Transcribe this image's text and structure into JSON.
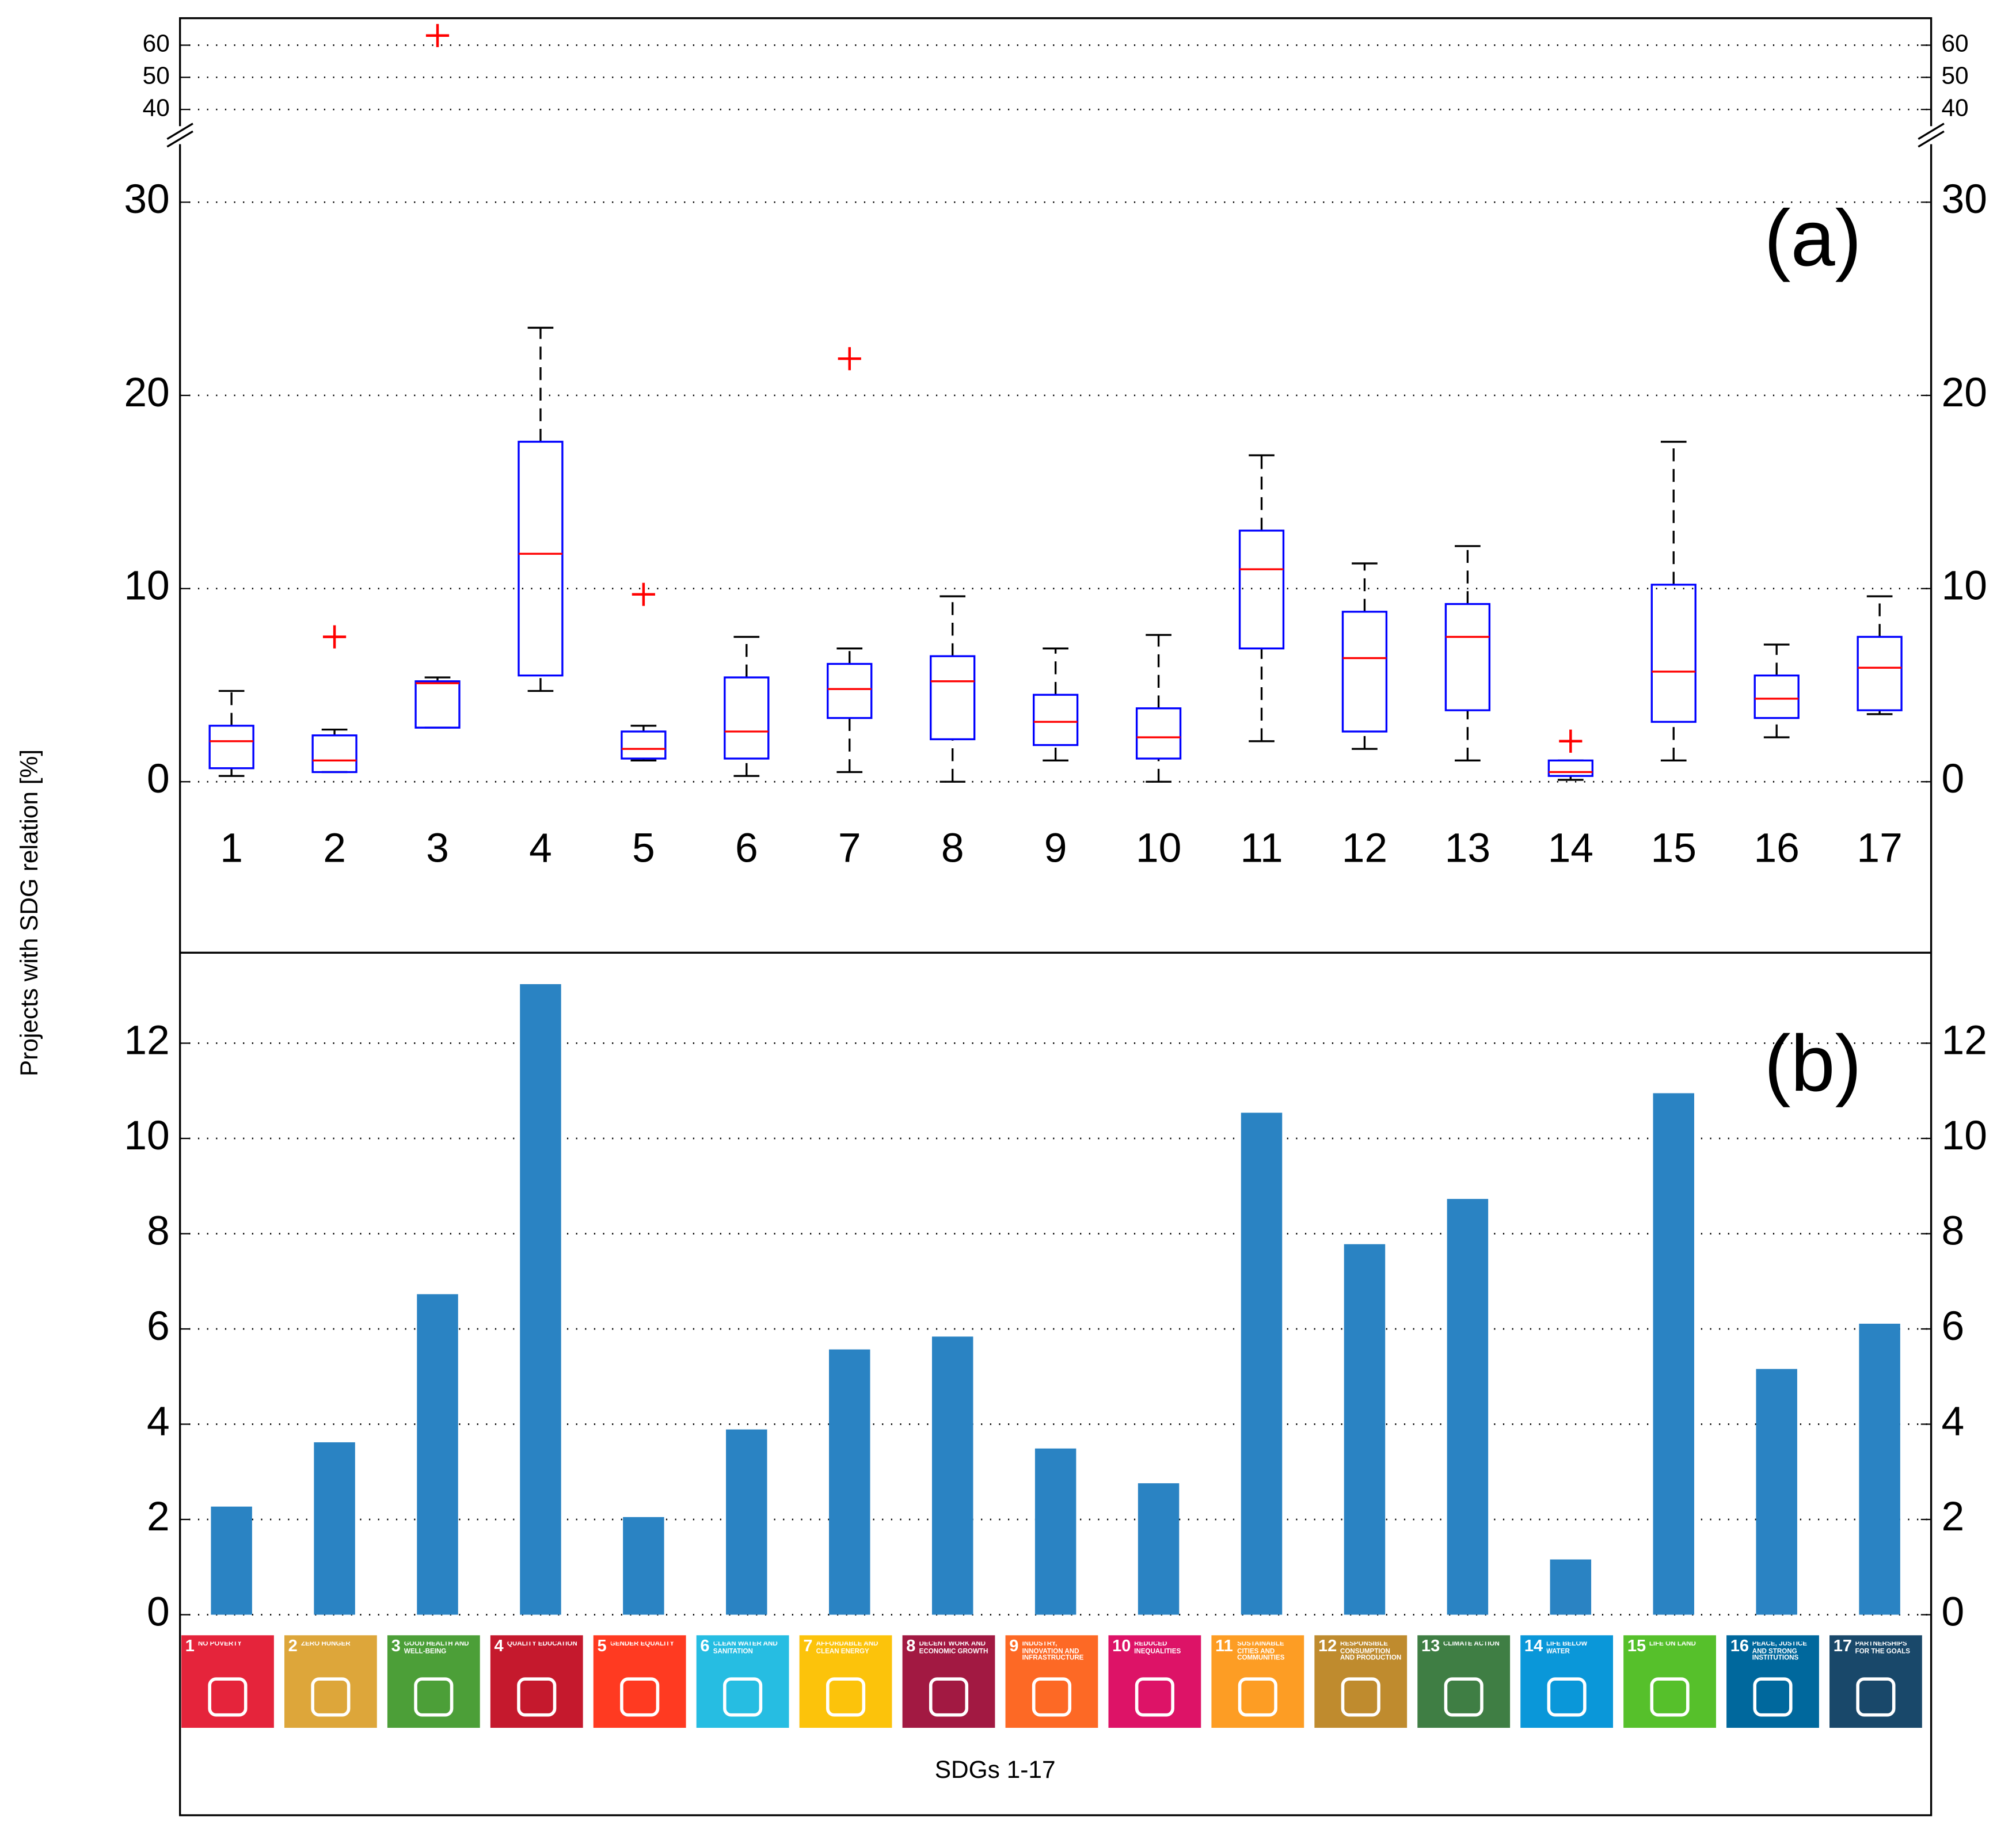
{
  "chart_data": [
    {
      "type": "box",
      "title": "(a)",
      "ylabel": "Projects with SDG relation [%]",
      "categories": [
        "1",
        "2",
        "3",
        "4",
        "5",
        "6",
        "7",
        "8",
        "9",
        "10",
        "11",
        "12",
        "13",
        "14",
        "15",
        "16",
        "17"
      ],
      "whisker_low": [
        0.3,
        0.5,
        2.8,
        4.7,
        1.1,
        0.3,
        0.5,
        0,
        1.1,
        0,
        2.1,
        1.7,
        1.1,
        0.1,
        1.1,
        2.3,
        3.5
      ],
      "q1": [
        0.7,
        0.5,
        2.8,
        5.5,
        1.2,
        1.2,
        3.3,
        2.2,
        1.9,
        1.2,
        6.9,
        2.6,
        3.7,
        0.3,
        3.1,
        3.3,
        3.7
      ],
      "median": [
        2.1,
        1.1,
        5.1,
        11.8,
        1.7,
        2.6,
        4.8,
        5.2,
        3.1,
        2.3,
        11.0,
        6.4,
        7.5,
        0.5,
        5.7,
        4.3,
        5.9
      ],
      "q3": [
        2.9,
        2.4,
        5.2,
        17.6,
        2.6,
        5.4,
        6.1,
        6.5,
        4.5,
        3.8,
        13.0,
        8.8,
        9.2,
        1.1,
        10.2,
        5.5,
        7.5
      ],
      "whisker_high": [
        4.7,
        2.7,
        5.4,
        23.5,
        2.9,
        7.5,
        6.9,
        9.6,
        6.9,
        7.6,
        16.9,
        11.3,
        12.2,
        1.1,
        17.6,
        7.1,
        9.6
      ],
      "outliers": [
        [],
        [
          7.5
        ],
        [
          63
        ],
        [],
        [
          9.7
        ],
        [],
        [
          21.9
        ],
        [],
        [],
        [],
        [],
        [],
        [],
        [
          2.1
        ],
        [],
        [],
        []
      ],
      "box_color": "#0000ff",
      "median_color": "#ff0000",
      "whisker_color": "#000000",
      "outlier_color": "#ff0000",
      "ylim": [
        -8.85,
        33.47
      ],
      "yticks": [
        0,
        10,
        20,
        30
      ],
      "ylim_upper": [
        32,
        68.4
      ],
      "yticks_upper": [
        40,
        50,
        60
      ],
      "grid": true
    },
    {
      "type": "bar",
      "title": "(b)",
      "xlabel": "SDGs 1-17",
      "values": [
        2.27,
        3.62,
        6.73,
        13.24,
        2.05,
        3.89,
        5.57,
        5.84,
        3.49,
        2.76,
        10.54,
        7.78,
        8.73,
        1.16,
        10.95,
        5.16,
        6.11
      ],
      "color": "#2a83c3",
      "ylim": [
        0,
        13.9
      ],
      "yticks": [
        0,
        2,
        4,
        6,
        8,
        10,
        12
      ],
      "grid": true,
      "tile_labels": [
        "NO POVERTY",
        "ZERO HUNGER",
        "GOOD HEALTH AND WELL-BEING",
        "QUALITY EDUCATION",
        "GENDER EQUALITY",
        "CLEAN WATER AND SANITATION",
        "AFFORDABLE AND CLEAN ENERGY",
        "DECENT WORK AND ECONOMIC GROWTH",
        "INDUSTRY, INNOVATION AND INFRASTRUCTURE",
        "REDUCED INEQUALITIES",
        "SUSTAINABLE CITIES AND COMMUNITIES",
        "RESPONSIBLE CONSUMPTION AND PRODUCTION",
        "CLIMATE ACTION",
        "LIFE BELOW WATER",
        "LIFE ON LAND",
        "PEACE, JUSTICE AND STRONG INSTITUTIONS",
        "PARTNERSHIPS FOR THE GOALS"
      ],
      "tile_colors": [
        "#e5243b",
        "#dda63a",
        "#4c9f38",
        "#c5192d",
        "#ff3a21",
        "#26bde2",
        "#fcc30b",
        "#a21942",
        "#fd6925",
        "#dd1367",
        "#fd9d24",
        "#bf8b2e",
        "#3f7e44",
        "#0a97d9",
        "#56c02b",
        "#00689d",
        "#19486a"
      ]
    }
  ]
}
